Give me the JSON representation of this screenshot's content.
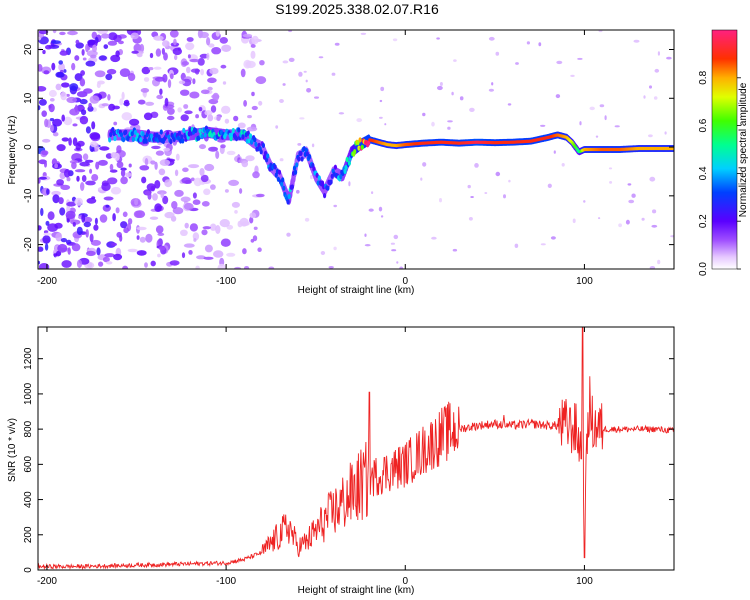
{
  "figure": {
    "title": "S199.2025.338.02.07.R16"
  },
  "chart_data": [
    {
      "type": "heatmap",
      "title": "S199.2025.338.02.07.R16",
      "xlabel": "Height of straight line (km)",
      "ylabel": "Frequency (Hz)",
      "xlim": [
        -205,
        150
      ],
      "ylim": [
        -25,
        24
      ],
      "x_ticks": [
        -200,
        -100,
        0,
        100
      ],
      "x_tick_labels": [
        "-200",
        "-100",
        "0",
        "100"
      ],
      "y_ticks": [
        -20,
        -10,
        0,
        10,
        20
      ],
      "y_tick_labels": [
        "-20",
        "-10",
        "0",
        "10",
        "20"
      ],
      "colorbar": {
        "label": "Normalized spectral amplitude",
        "range": [
          0,
          1
        ],
        "ticks": [
          0.0,
          0.2,
          0.4,
          0.6,
          0.8
        ],
        "tick_labels": [
          "0.0",
          "0.2",
          "0.4",
          "0.6",
          "0.8"
        ],
        "colormap": "rainbow (white-purple-blue-cyan-green-yellow-red-pink)"
      },
      "ridge": {
        "description": "dominant frequency trace vs height",
        "x": [
          -165,
          -150,
          -140,
          -130,
          -120,
          -110,
          -100,
          -90,
          -85,
          -80,
          -75,
          -70,
          -65,
          -60,
          -55,
          -50,
          -45,
          -40,
          -35,
          -30,
          -25,
          -20,
          -15,
          -10,
          -5,
          0,
          10,
          20,
          30,
          40,
          50,
          60,
          70,
          80,
          85,
          90,
          93,
          97,
          100,
          110,
          120,
          130,
          140,
          150
        ],
        "y": [
          2.5,
          2.5,
          2.0,
          2.0,
          2.5,
          3.0,
          2.5,
          2.5,
          1.0,
          0,
          -4,
          -6,
          -11,
          -2,
          -1,
          -6,
          -9,
          -5,
          -6,
          -1,
          0.5,
          1.5,
          1.0,
          0.5,
          0.3,
          0.5,
          0.8,
          1.0,
          0.8,
          1.0,
          0.9,
          1.0,
          1.2,
          2.0,
          2.5,
          2.0,
          1.0,
          -1,
          -0.5,
          -0.5,
          -0.5,
          -0.3,
          -0.3,
          -0.3
        ],
        "amplitude": [
          0.35,
          0.4,
          0.35,
          0.3,
          0.4,
          0.45,
          0.4,
          0.45,
          0.35,
          0.3,
          0.35,
          0.3,
          0.4,
          0.3,
          0.3,
          0.35,
          0.35,
          0.3,
          0.4,
          0.5,
          0.9,
          0.9,
          0.85,
          0.8,
          0.8,
          0.85,
          0.9,
          0.9,
          0.9,
          0.95,
          0.9,
          0.9,
          0.9,
          0.9,
          0.85,
          0.8,
          0.7,
          0.5,
          0.8,
          0.85,
          0.85,
          0.8,
          0.8,
          0.8
        ]
      },
      "noise_region": {
        "x_range": [
          -205,
          -80
        ],
        "y_range": [
          -25,
          24
        ]
      }
    },
    {
      "type": "line",
      "xlabel": "Height of straight line (km)",
      "ylabel": "SNR (10 * v/v)",
      "xlim": [
        -205,
        150
      ],
      "ylim": [
        0,
        1380
      ],
      "x_ticks": [
        -200,
        -100,
        0,
        100
      ],
      "x_tick_labels": [
        "-200",
        "-100",
        "0",
        "100"
      ],
      "y_ticks": [
        0,
        200,
        400,
        600,
        800,
        1000,
        1200
      ],
      "y_tick_labels": [
        "0",
        "200",
        "400",
        "600",
        "800",
        "1000",
        "1200"
      ],
      "series": [
        {
          "name": "SNR",
          "color": "#ee2222",
          "x": [
            -205,
            -180,
            -160,
            -140,
            -120,
            -100,
            -90,
            -80,
            -75,
            -70,
            -65,
            -60,
            -55,
            -50,
            -45,
            -40,
            -35,
            -30,
            -25,
            -20,
            -15,
            -10,
            -5,
            0,
            5,
            10,
            15,
            20,
            25,
            30,
            40,
            50,
            60,
            70,
            80,
            85,
            90,
            95,
            98,
            100,
            102,
            105,
            110,
            120,
            130,
            140,
            150
          ],
          "values": [
            20,
            20,
            25,
            30,
            35,
            40,
            60,
            100,
            150,
            200,
            250,
            130,
            160,
            220,
            280,
            330,
            380,
            430,
            480,
            520,
            540,
            560,
            580,
            600,
            640,
            680,
            720,
            760,
            790,
            800,
            820,
            830,
            820,
            830,
            820,
            820,
            820,
            800,
            700,
            150,
            900,
            820,
            800,
            800,
            800,
            800,
            790
          ]
        }
      ],
      "spikes": [
        {
          "x": -20,
          "value": 1010
        },
        {
          "x": 55,
          "value": 880
        },
        {
          "x": 92,
          "value": 920
        },
        {
          "x": 99,
          "value": 1380
        },
        {
          "x": 100,
          "value": 70
        },
        {
          "x": 103,
          "value": 1100
        }
      ]
    }
  ]
}
